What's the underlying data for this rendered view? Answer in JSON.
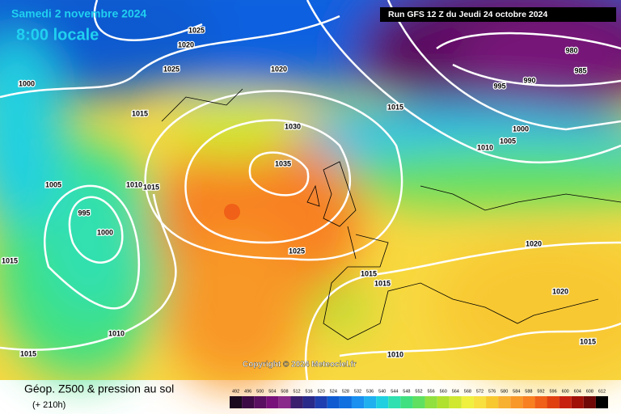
{
  "header": {
    "date": "Samedi 2 novembre 2024",
    "time": "8:00 locale",
    "run": "Run GFS 12 Z du Jeudi 24 octobre 2024"
  },
  "isobar_labels": [
    "1025",
    "1020",
    "1025",
    "1020",
    "1000",
    "1015",
    "1015",
    "1030",
    "1035",
    "1005",
    "1010",
    "1015",
    "995",
    "1000",
    "1025",
    "1015",
    "1015",
    "1015",
    "1020",
    "1020",
    "1010",
    "1015",
    "1010",
    "1015",
    "980",
    "990",
    "985",
    "995",
    "1000",
    "1005",
    "1010"
  ],
  "copyright": "Copyright © 2024 Meteociel.fr",
  "legend": {
    "title": "Géop. Z500 & pression au sol",
    "lead": "(+ 210h)",
    "scale": [
      492,
      496,
      500,
      504,
      508,
      512,
      516,
      520,
      524,
      528,
      532,
      536,
      540,
      544,
      548,
      552,
      556,
      560,
      564,
      568,
      572,
      576,
      580,
      584,
      588,
      592,
      596,
      600,
      604,
      608,
      612
    ],
    "colors": [
      "#1a0a1e",
      "#3c0a44",
      "#5a1060",
      "#78127a",
      "#8a2a8a",
      "#3a1f6e",
      "#2a2a8a",
      "#1f3fb0",
      "#0f5ad0",
      "#1070e0",
      "#1a90f0",
      "#20b0f0",
      "#20d0e0",
      "#30e0b0",
      "#40e080",
      "#60e060",
      "#90e040",
      "#b0e030",
      "#d0e830",
      "#f0f040",
      "#f8e040",
      "#f8c830",
      "#f8b030",
      "#f89828",
      "#f88020",
      "#f06018",
      "#e04010",
      "#c82010",
      "#a01008",
      "#700808",
      "#000000"
    ]
  }
}
